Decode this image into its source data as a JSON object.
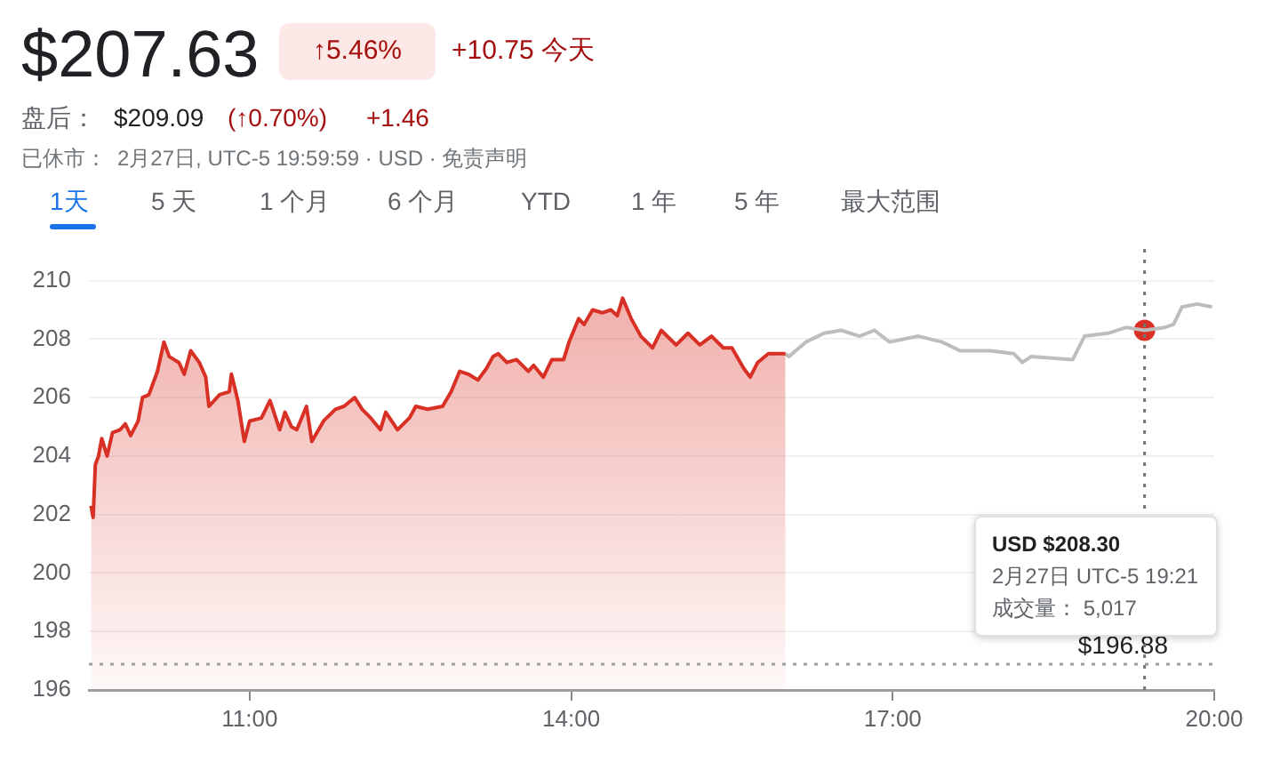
{
  "chart_data": {
    "type": "line",
    "title": "$207.63",
    "annotations": [
      "↑5.46%",
      "+10.75 今天",
      "盘后：",
      "$209.09",
      "(↑0.70%)",
      "+1.46",
      "已休市：",
      "2月27日, UTC-5 19:59:59 · USD · 免责声明",
      "1天",
      "5 天",
      "1 个月",
      "6 个月",
      "YTD",
      "1 年",
      "5 年",
      "最大范围",
      "USD $208.30\n2月27日 UTC-5 19:21\n成交量：  5,017"
    ],
    "xlim": [
      9.5,
      20
    ],
    "xticks": [
      {
        "value": 11,
        "label": "11:00"
      },
      {
        "value": 14,
        "label": "14:00"
      },
      {
        "value": 17,
        "label": "17:00"
      },
      {
        "value": 20,
        "label": "20:00"
      }
    ],
    "ylim": [
      196,
      210
    ],
    "yticks": [
      196,
      198,
      200,
      202,
      204,
      206,
      208,
      210
    ],
    "grid": "y",
    "legend": false,
    "marker": "none",
    "series": [
      {
        "type": "area",
        "color": "#d93025",
        "x": [
          9.52,
          9.54,
          9.56,
          9.59,
          9.62,
          9.67,
          9.72,
          9.79,
          9.84,
          9.89,
          9.96,
          10.0,
          10.06,
          10.14,
          10.2,
          10.25,
          10.34,
          10.39,
          10.45,
          10.53,
          10.59,
          10.62,
          10.72,
          10.81,
          10.83,
          10.89,
          10.95,
          11.0,
          11.11,
          11.19,
          11.28,
          11.33,
          11.39,
          11.44,
          11.53,
          11.58,
          11.69,
          11.8,
          11.88,
          11.98,
          12.05,
          12.13,
          12.22,
          12.27,
          12.38,
          12.49,
          12.55,
          12.66,
          12.8,
          12.88,
          12.96,
          13.04,
          13.13,
          13.21,
          13.27,
          13.32,
          13.4,
          13.49,
          13.6,
          13.65,
          13.74,
          13.82,
          13.93,
          13.98,
          14.07,
          14.12,
          14.2,
          14.29,
          14.37,
          14.43,
          14.48,
          14.56,
          14.65,
          14.76,
          14.84,
          14.98,
          15.09,
          15.2,
          15.31,
          15.42,
          15.5,
          15.61,
          15.67,
          15.74,
          15.84,
          16.0
        ],
        "values": [
          202.3,
          201.9,
          203.7,
          204.0,
          204.6,
          204.0,
          204.8,
          204.9,
          205.1,
          204.7,
          205.2,
          206.0,
          206.1,
          206.9,
          207.9,
          207.4,
          207.2,
          206.8,
          207.6,
          207.2,
          206.7,
          205.7,
          206.1,
          206.2,
          206.8,
          205.9,
          204.5,
          205.2,
          205.3,
          205.9,
          204.9,
          205.5,
          205.0,
          204.9,
          205.7,
          204.5,
          205.2,
          205.6,
          205.7,
          206.0,
          205.6,
          205.3,
          204.9,
          205.5,
          204.9,
          205.3,
          205.7,
          205.6,
          205.7,
          206.2,
          206.9,
          206.8,
          206.6,
          207.0,
          207.4,
          207.5,
          207.2,
          207.3,
          206.9,
          207.1,
          206.7,
          207.3,
          207.3,
          207.9,
          208.7,
          208.5,
          209.0,
          208.9,
          209.0,
          208.8,
          209.4,
          208.7,
          208.1,
          207.7,
          208.3,
          207.8,
          208.2,
          207.8,
          208.1,
          207.7,
          207.7,
          207.0,
          206.7,
          207.2,
          207.5,
          207.5
        ]
      },
      {
        "color": "#bdbdbd",
        "x": [
          16.0,
          16.03,
          16.19,
          16.36,
          16.52,
          16.69,
          16.83,
          16.97,
          17.24,
          17.46,
          17.63,
          17.91,
          18.13,
          18.21,
          18.29,
          18.68,
          18.79,
          19.01,
          19.18,
          19.35,
          19.54,
          19.62,
          19.7,
          19.84,
          19.98
        ],
        "values": [
          207.5,
          207.4,
          207.9,
          208.2,
          208.3,
          208.1,
          208.3,
          207.9,
          208.1,
          207.9,
          207.6,
          207.6,
          207.5,
          207.2,
          207.4,
          207.3,
          208.1,
          208.2,
          208.4,
          208.3,
          208.4,
          208.5,
          209.1,
          209.2,
          209.1
        ]
      },
      {
        "type": "scatter",
        "color": "#d93025",
        "marker": "circle",
        "x": [
          19.35
        ],
        "values": [
          208.3
        ]
      }
    ],
    "ref_lines": [
      {
        "axis": "y",
        "value": 196.88,
        "label": "$196.88",
        "color": "#9e9e9e",
        "line_style": "dotted"
      },
      {
        "axis": "x",
        "value": 19.35,
        "label": null,
        "color": "#757575",
        "line_style": "dotted"
      }
    ]
  }
}
